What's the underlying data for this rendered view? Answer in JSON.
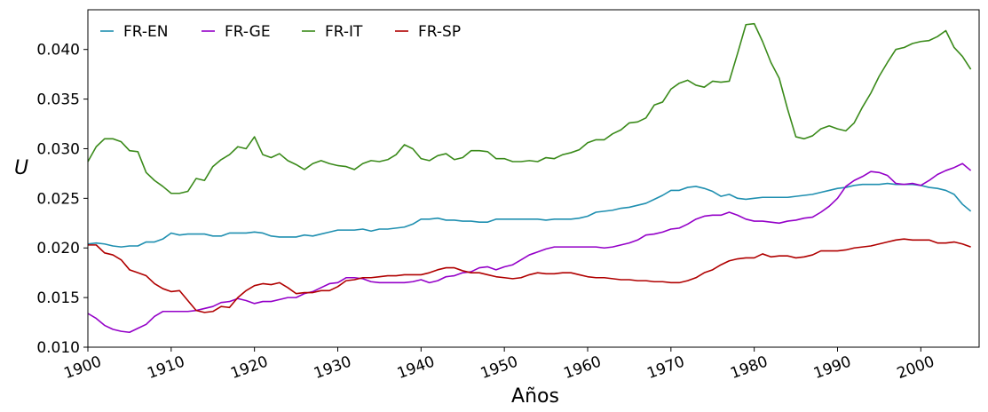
{
  "chart_data": {
    "type": "line",
    "title": "",
    "xlabel": "Años",
    "ylabel": "U",
    "xlim": [
      1900,
      2007
    ],
    "ylim": [
      0.01,
      0.044
    ],
    "xticks": [
      1900,
      1910,
      1920,
      1930,
      1940,
      1950,
      1960,
      1970,
      1980,
      1990,
      2000
    ],
    "xtick_labels": [
      "1900",
      "1910",
      "1920",
      "1930",
      "1940",
      "1950",
      "1960",
      "1970",
      "1980",
      "1990",
      "2000"
    ],
    "yticks": [
      0.01,
      0.015,
      0.02,
      0.025,
      0.03,
      0.035,
      0.04
    ],
    "ytick_labels": [
      "0.010",
      "0.015",
      "0.020",
      "0.025",
      "0.030",
      "0.035",
      "0.040"
    ],
    "grid": false,
    "legend_position": "top-left",
    "x": [
      1900,
      1901,
      1902,
      1903,
      1904,
      1905,
      1906,
      1907,
      1908,
      1909,
      1910,
      1911,
      1912,
      1913,
      1914,
      1915,
      1916,
      1917,
      1918,
      1919,
      1920,
      1921,
      1922,
      1923,
      1924,
      1925,
      1926,
      1927,
      1928,
      1929,
      1930,
      1931,
      1932,
      1933,
      1934,
      1935,
      1936,
      1937,
      1938,
      1939,
      1940,
      1941,
      1942,
      1943,
      1944,
      1945,
      1946,
      1947,
      1948,
      1949,
      1950,
      1951,
      1952,
      1953,
      1954,
      1955,
      1956,
      1957,
      1958,
      1959,
      1960,
      1961,
      1962,
      1963,
      1964,
      1965,
      1966,
      1967,
      1968,
      1969,
      1970,
      1971,
      1972,
      1973,
      1974,
      1975,
      1976,
      1977,
      1978,
      1979,
      1980,
      1981,
      1982,
      1983,
      1984,
      1985,
      1986,
      1987,
      1988,
      1989,
      1990,
      1991,
      1992,
      1993,
      1994,
      1995,
      1996,
      1997,
      1998,
      1999,
      2000,
      2001,
      2002,
      2003,
      2004,
      2005,
      2006
    ],
    "series": [
      {
        "name": "FR-EN",
        "color": "#1f8fb0",
        "values": [
          0.0204,
          0.0205,
          0.0204,
          0.0202,
          0.0201,
          0.0202,
          0.0202,
          0.0206,
          0.0206,
          0.0209,
          0.0215,
          0.0213,
          0.0214,
          0.0214,
          0.0214,
          0.0212,
          0.0212,
          0.0215,
          0.0215,
          0.0215,
          0.0216,
          0.0215,
          0.0212,
          0.0211,
          0.0211,
          0.0211,
          0.0213,
          0.0212,
          0.0214,
          0.0216,
          0.0218,
          0.0218,
          0.0218,
          0.0219,
          0.0217,
          0.0219,
          0.0219,
          0.022,
          0.0221,
          0.0224,
          0.0229,
          0.0229,
          0.023,
          0.0228,
          0.0228,
          0.0227,
          0.0227,
          0.0226,
          0.0226,
          0.0229,
          0.0229,
          0.0229,
          0.0229,
          0.0229,
          0.0229,
          0.0228,
          0.0229,
          0.0229,
          0.0229,
          0.023,
          0.0232,
          0.0236,
          0.0237,
          0.0238,
          0.024,
          0.0241,
          0.0243,
          0.0245,
          0.0249,
          0.0253,
          0.0258,
          0.0258,
          0.0261,
          0.0262,
          0.026,
          0.0257,
          0.0252,
          0.0254,
          0.025,
          0.0249,
          0.025,
          0.0251,
          0.0251,
          0.0251,
          0.0251,
          0.0252,
          0.0253,
          0.0254,
          0.0256,
          0.0258,
          0.026,
          0.0261,
          0.0263,
          0.0264,
          0.0264,
          0.0264,
          0.0265,
          0.0264,
          0.0264,
          0.0264,
          0.0263,
          0.0261,
          0.026,
          0.0258,
          0.0254,
          0.0244,
          0.0237
        ]
      },
      {
        "name": "FR-GE",
        "color": "#9400c8",
        "values": [
          0.0134,
          0.0129,
          0.0122,
          0.0118,
          0.0116,
          0.0115,
          0.0119,
          0.0123,
          0.0131,
          0.0136,
          0.0136,
          0.0136,
          0.0136,
          0.0137,
          0.0139,
          0.0141,
          0.0145,
          0.0146,
          0.0149,
          0.0147,
          0.0144,
          0.0146,
          0.0146,
          0.0148,
          0.015,
          0.015,
          0.0154,
          0.0156,
          0.016,
          0.0164,
          0.0165,
          0.017,
          0.017,
          0.0169,
          0.0166,
          0.0165,
          0.0165,
          0.0165,
          0.0165,
          0.0166,
          0.0168,
          0.0165,
          0.0167,
          0.0171,
          0.0172,
          0.0175,
          0.0176,
          0.018,
          0.0181,
          0.0178,
          0.0181,
          0.0183,
          0.0188,
          0.0193,
          0.0196,
          0.0199,
          0.0201,
          0.0201,
          0.0201,
          0.0201,
          0.0201,
          0.0201,
          0.02,
          0.0201,
          0.0203,
          0.0205,
          0.0208,
          0.0213,
          0.0214,
          0.0216,
          0.0219,
          0.022,
          0.0224,
          0.0229,
          0.0232,
          0.0233,
          0.0233,
          0.0236,
          0.0233,
          0.0229,
          0.0227,
          0.0227,
          0.0226,
          0.0225,
          0.0227,
          0.0228,
          0.023,
          0.0231,
          0.0236,
          0.0242,
          0.025,
          0.0262,
          0.0268,
          0.0272,
          0.0277,
          0.0276,
          0.0273,
          0.0265,
          0.0264,
          0.0265,
          0.0263,
          0.0268,
          0.0274,
          0.0278,
          0.0281,
          0.0285,
          0.0278
        ]
      },
      {
        "name": "FR-IT",
        "color": "#3a8a1a",
        "values": [
          0.0287,
          0.0302,
          0.031,
          0.031,
          0.0307,
          0.0298,
          0.0297,
          0.0276,
          0.0268,
          0.0262,
          0.0255,
          0.0255,
          0.0257,
          0.027,
          0.0268,
          0.0282,
          0.0289,
          0.0294,
          0.0302,
          0.03,
          0.0312,
          0.0294,
          0.0291,
          0.0295,
          0.0288,
          0.0284,
          0.0279,
          0.0285,
          0.0288,
          0.0285,
          0.0283,
          0.0282,
          0.0279,
          0.0285,
          0.0288,
          0.0287,
          0.0289,
          0.0294,
          0.0304,
          0.03,
          0.029,
          0.0288,
          0.0293,
          0.0295,
          0.0289,
          0.0291,
          0.0298,
          0.0298,
          0.0297,
          0.029,
          0.029,
          0.0287,
          0.0287,
          0.0288,
          0.0287,
          0.0291,
          0.029,
          0.0294,
          0.0296,
          0.0299,
          0.0306,
          0.0309,
          0.0309,
          0.0315,
          0.0319,
          0.0326,
          0.0327,
          0.0331,
          0.0344,
          0.0347,
          0.036,
          0.0366,
          0.0369,
          0.0364,
          0.0362,
          0.0368,
          0.0367,
          0.0368,
          0.0396,
          0.0425,
          0.0426,
          0.0408,
          0.0387,
          0.0371,
          0.034,
          0.0312,
          0.031,
          0.0313,
          0.032,
          0.0323,
          0.032,
          0.0318,
          0.0326,
          0.0342,
          0.0356,
          0.0373,
          0.0387,
          0.04,
          0.0402,
          0.0406,
          0.0408,
          0.0409,
          0.0413,
          0.0419,
          0.0402,
          0.0393,
          0.038
        ]
      },
      {
        "name": "FR-SP",
        "color": "#b00000",
        "values": [
          0.0203,
          0.0203,
          0.0195,
          0.0193,
          0.0188,
          0.0178,
          0.0175,
          0.0172,
          0.0164,
          0.0159,
          0.0156,
          0.0157,
          0.0147,
          0.0137,
          0.0135,
          0.0136,
          0.0141,
          0.014,
          0.015,
          0.0157,
          0.0162,
          0.0164,
          0.0163,
          0.0165,
          0.016,
          0.0154,
          0.0155,
          0.0155,
          0.0157,
          0.0157,
          0.0161,
          0.0167,
          0.0168,
          0.017,
          0.017,
          0.0171,
          0.0172,
          0.0172,
          0.0173,
          0.0173,
          0.0173,
          0.0175,
          0.0178,
          0.018,
          0.018,
          0.0177,
          0.0175,
          0.0175,
          0.0173,
          0.0171,
          0.017,
          0.0169,
          0.017,
          0.0173,
          0.0175,
          0.0174,
          0.0174,
          0.0175,
          0.0175,
          0.0173,
          0.0171,
          0.017,
          0.017,
          0.0169,
          0.0168,
          0.0168,
          0.0167,
          0.0167,
          0.0166,
          0.0166,
          0.0165,
          0.0165,
          0.0167,
          0.017,
          0.0175,
          0.0178,
          0.0183,
          0.0187,
          0.0189,
          0.019,
          0.019,
          0.0194,
          0.0191,
          0.0192,
          0.0192,
          0.019,
          0.0191,
          0.0193,
          0.0197,
          0.0197,
          0.0197,
          0.0198,
          0.02,
          0.0201,
          0.0202,
          0.0204,
          0.0206,
          0.0208,
          0.0209,
          0.0208,
          0.0208,
          0.0208,
          0.0205,
          0.0205,
          0.0206,
          0.0204,
          0.0201
        ]
      }
    ]
  }
}
